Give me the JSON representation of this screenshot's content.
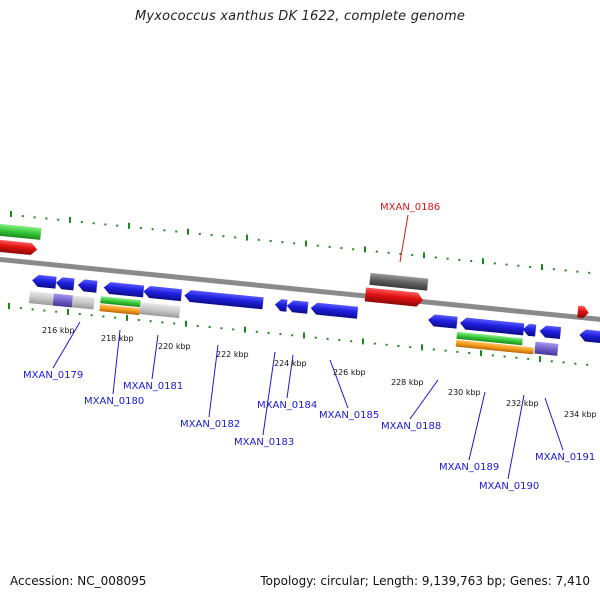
{
  "title": "Myxococcus xanthus DK 1622, complete genome",
  "footer": {
    "accession": "Accession: NC_008095",
    "summary": "Topology: circular; Length: 9,139,763 bp; Genes: 7,410"
  },
  "colors": {
    "backbone": "#8a8a8a",
    "tick_green": "#1a8a1a",
    "gene_blue": "#1f1fe0",
    "gene_red": "#e01010",
    "feature_green": "#38c838",
    "feature_orange": "#f39a1a",
    "feature_gray": "#c8c8c8",
    "feature_dark_gray": "#606060",
    "feature_purple": "#7060c8",
    "label_blue": "#1a1ad6",
    "label_red": "#d81818"
  },
  "ticks": [
    "216 kbp",
    "218 kbp",
    "220 kbp",
    "222 kbp",
    "224 kbp",
    "226 kbp",
    "228 kbp",
    "230 kbp",
    "232 kbp",
    "234 kbp"
  ],
  "genes_below": [
    "MXAN_0179",
    "MXAN_0180",
    "MXAN_0181",
    "MXAN_0182",
    "MXAN_0183",
    "MXAN_0184",
    "MXAN_0185",
    "MXAN_0188",
    "MXAN_0189",
    "MXAN_0190",
    "MXAN_0191"
  ],
  "genes_above": [
    "MXAN_0186"
  ]
}
